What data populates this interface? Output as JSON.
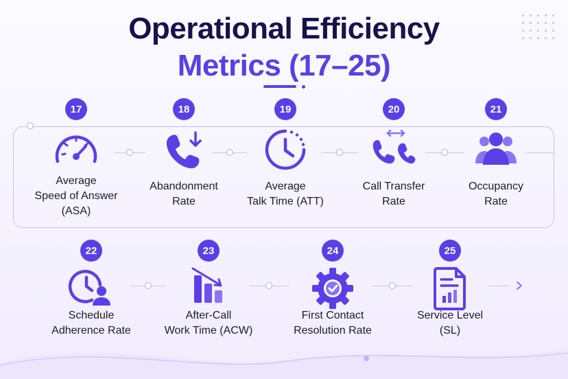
{
  "title": {
    "line1": "Operational Efficiency",
    "line2": "Metrics (17–25)"
  },
  "colors": {
    "accent": "#5a3fe6",
    "accent_light": "#8b74f4",
    "text": "#1b1b2e",
    "title_dark": "#17134a"
  },
  "metrics": [
    {
      "number": "17",
      "label_lines": [
        "Average",
        "Speed of Answer",
        "(ASA)"
      ],
      "icon": "speedometer-icon"
    },
    {
      "number": "18",
      "label_lines": [
        "Abandonment",
        "Rate"
      ],
      "icon": "phone-down-icon"
    },
    {
      "number": "19",
      "label_lines": [
        "Average",
        "Talk Time (ATT)"
      ],
      "icon": "clock-icon"
    },
    {
      "number": "20",
      "label_lines": [
        "Call Transfer",
        "Rate"
      ],
      "icon": "phone-transfer-icon"
    },
    {
      "number": "21",
      "label_lines": [
        "Occupancy",
        "Rate"
      ],
      "icon": "people-group-icon"
    },
    {
      "number": "22",
      "label_lines": [
        "Schedule",
        "Adherence Rate"
      ],
      "icon": "clock-user-icon"
    },
    {
      "number": "23",
      "label_lines": [
        "After-Call",
        "Work Time (ACW)"
      ],
      "icon": "bar-chart-down-icon"
    },
    {
      "number": "24",
      "label_lines": [
        "First Contact",
        "Resolution Rate"
      ],
      "icon": "gear-check-icon"
    },
    {
      "number": "25",
      "label_lines": [
        "Service Level",
        "(SL)"
      ],
      "icon": "report-document-icon"
    }
  ]
}
